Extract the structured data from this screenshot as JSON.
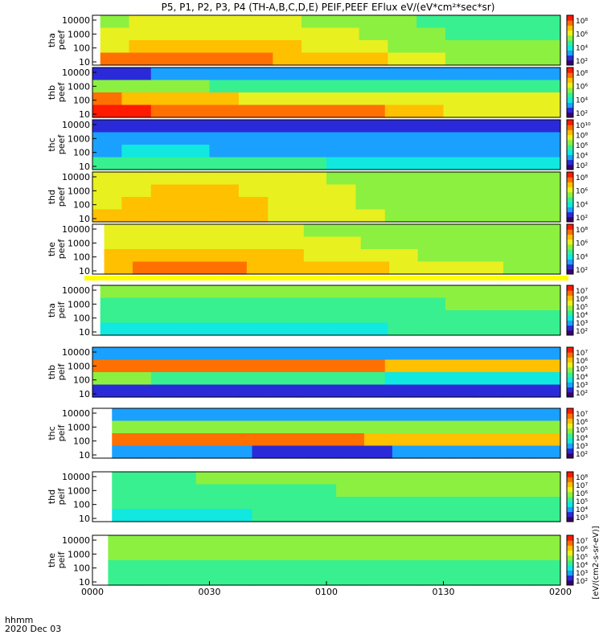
{
  "title": "P5, P1, P2, P3, P4 (TH-A,B,C,D,E) PEIF,PEEF EFlux eV/(eV*cm²*sec*sr)",
  "footer": {
    "time_label": "hhmm",
    "date_label": "2020 Dec 03"
  },
  "x_ticks": [
    "0000",
    "0030",
    "0100",
    "0130",
    "0200"
  ],
  "colorbar_unit_label": "[eV/(cm2-s-sr-eV)]",
  "palette": {
    "spectrum": [
      "#3a006a",
      "#2a2ad8",
      "#1aa0ff",
      "#10e8e0",
      "#38f090",
      "#8cf040",
      "#e8f020",
      "#ffc000",
      "#ff7000",
      "#ff1a00"
    ],
    "separator_yellow": "#ffff00"
  },
  "chart_data": {
    "type": "heatmap",
    "time_range_hhmm": [
      "0000",
      "0200"
    ],
    "y_scale": "log",
    "y_ticks": [
      "10",
      "100",
      "1000",
      "10000"
    ],
    "panels": [
      {
        "probe": "tha",
        "product": "peef",
        "label_lines": [
          "tha",
          "peef"
        ],
        "colorbar_ticks": [
          "10²",
          "10⁴",
          "10⁶",
          "10⁸"
        ],
        "data_start_min": 2,
        "levels": [
          [
            0.6,
            0.62,
            0.64,
            0.66,
            0.66,
            0.64,
            0.62,
            0.6,
            0.58,
            0.56,
            0.5,
            0.46,
            0.44,
            0.44,
            0.42,
            0.42
          ],
          [
            0.65,
            0.67,
            0.69,
            0.71,
            0.7,
            0.68,
            0.66,
            0.64,
            0.62,
            0.6,
            0.55,
            0.5,
            0.48,
            0.47,
            0.46,
            0.46
          ],
          [
            0.72,
            0.75,
            0.77,
            0.78,
            0.77,
            0.75,
            0.73,
            0.71,
            0.69,
            0.66,
            0.6,
            0.55,
            0.53,
            0.52,
            0.51,
            0.51
          ],
          [
            0.84,
            0.86,
            0.87,
            0.87,
            0.86,
            0.85,
            0.83,
            0.8,
            0.78,
            0.75,
            0.7,
            0.65,
            0.6,
            0.58,
            0.57,
            0.57
          ]
        ]
      },
      {
        "probe": "thb",
        "product": "peef",
        "label_lines": [
          "thb",
          "peef"
        ],
        "colorbar_ticks": [
          "10²",
          "10⁴",
          "10⁶",
          "10⁸"
        ],
        "data_start_min": 0,
        "levels": [
          [
            0.15,
            0.15,
            0.18,
            0.2,
            0.2,
            0.2,
            0.2,
            0.2,
            0.2,
            0.2,
            0.2,
            0.18,
            0.18,
            0.18,
            0.18,
            0.18
          ],
          [
            0.55,
            0.52,
            0.5,
            0.5,
            0.48,
            0.46,
            0.44,
            0.44,
            0.42,
            0.42,
            0.44,
            0.44,
            0.46,
            0.45,
            0.45,
            0.45
          ],
          [
            0.88,
            0.8,
            0.78,
            0.76,
            0.74,
            0.72,
            0.7,
            0.7,
            0.68,
            0.66,
            0.65,
            0.65,
            0.64,
            0.64,
            0.62,
            0.62
          ],
          [
            0.98,
            0.96,
            0.94,
            0.92,
            0.9,
            0.9,
            0.88,
            0.86,
            0.86,
            0.85,
            0.8,
            0.75,
            0.72,
            0.72,
            0.7,
            0.7
          ]
        ]
      },
      {
        "probe": "thc",
        "product": "peef",
        "label_lines": [
          "thc",
          "peef"
        ],
        "colorbar_ticks": [
          "10²",
          "10⁴",
          "10⁶",
          "10⁸",
          "10¹⁰"
        ],
        "data_start_min": 0,
        "levels": [
          [
            0.1,
            0.12,
            0.12,
            0.12,
            0.1,
            0.1,
            0.1,
            0.1,
            0.1,
            0.1,
            0.08,
            0.08,
            0.08,
            0.08,
            0.08,
            0.1
          ],
          [
            0.2,
            0.22,
            0.22,
            0.22,
            0.2,
            0.2,
            0.2,
            0.2,
            0.2,
            0.2,
            0.18,
            0.18,
            0.18,
            0.2,
            0.2,
            0.2
          ],
          [
            0.26,
            0.28,
            0.28,
            0.28,
            0.26,
            0.26,
            0.26,
            0.26,
            0.26,
            0.26,
            0.24,
            0.24,
            0.24,
            0.24,
            0.24,
            0.26
          ],
          [
            0.4,
            0.42,
            0.44,
            0.44,
            0.42,
            0.42,
            0.42,
            0.4,
            0.38,
            0.36,
            0.34,
            0.34,
            0.32,
            0.32,
            0.32,
            0.32
          ]
        ]
      },
      {
        "probe": "thd",
        "product": "peef",
        "label_lines": [
          "thd",
          "peef"
        ],
        "colorbar_ticks": [
          "10²",
          "10⁴",
          "10⁶",
          "10⁸"
        ],
        "data_start_min": 0,
        "levels": [
          [
            0.66,
            0.68,
            0.7,
            0.7,
            0.7,
            0.68,
            0.66,
            0.64,
            0.6,
            0.56,
            0.52,
            0.5,
            0.5,
            0.5,
            0.5,
            0.5
          ],
          [
            0.7,
            0.72,
            0.74,
            0.74,
            0.74,
            0.72,
            0.7,
            0.68,
            0.62,
            0.56,
            0.52,
            0.5,
            0.5,
            0.5,
            0.5,
            0.5
          ],
          [
            0.72,
            0.74,
            0.75,
            0.75,
            0.75,
            0.73,
            0.71,
            0.69,
            0.63,
            0.57,
            0.53,
            0.51,
            0.51,
            0.51,
            0.51,
            0.51
          ],
          [
            0.74,
            0.75,
            0.76,
            0.76,
            0.76,
            0.74,
            0.72,
            0.7,
            0.66,
            0.62,
            0.58,
            0.56,
            0.55,
            0.55,
            0.55,
            0.55
          ]
        ]
      },
      {
        "probe": "the",
        "product": "peef",
        "label_lines": [
          "the",
          "peef"
        ],
        "colorbar_ticks": [
          "10²",
          "10⁴",
          "10⁶",
          "10⁸"
        ],
        "data_start_min": 3,
        "levels": [
          [
            0.62,
            0.64,
            0.66,
            0.66,
            0.66,
            0.64,
            0.62,
            0.6,
            0.58,
            0.56,
            0.54,
            0.52,
            0.5,
            0.5,
            0.5,
            0.5
          ],
          [
            0.68,
            0.7,
            0.72,
            0.72,
            0.71,
            0.7,
            0.68,
            0.66,
            0.63,
            0.6,
            0.58,
            0.56,
            0.54,
            0.54,
            0.54,
            0.54
          ],
          [
            0.74,
            0.76,
            0.77,
            0.77,
            0.76,
            0.75,
            0.73,
            0.71,
            0.68,
            0.66,
            0.63,
            0.6,
            0.58,
            0.58,
            0.57,
            0.57
          ],
          [
            0.82,
            0.84,
            0.85,
            0.85,
            0.84,
            0.83,
            0.81,
            0.79,
            0.76,
            0.73,
            0.7,
            0.66,
            0.63,
            0.62,
            0.6,
            0.6
          ]
        ]
      },
      {
        "probe": "tha",
        "product": "peif",
        "label_lines": [
          "tha",
          "peif"
        ],
        "colorbar_ticks": [
          "10²",
          "10³",
          "10⁴",
          "10⁵",
          "10⁶",
          "10⁷"
        ],
        "data_start_min": 2,
        "levels": [
          [
            0.5,
            0.5,
            0.5,
            0.5,
            0.5,
            0.5,
            0.5,
            0.5,
            0.5,
            0.5,
            0.5,
            0.5,
            0.52,
            0.52,
            0.52,
            0.52
          ],
          [
            0.46,
            0.46,
            0.46,
            0.46,
            0.46,
            0.46,
            0.46,
            0.46,
            0.46,
            0.46,
            0.48,
            0.48,
            0.5,
            0.5,
            0.5,
            0.5
          ],
          [
            0.42,
            0.42,
            0.42,
            0.42,
            0.42,
            0.42,
            0.42,
            0.42,
            0.42,
            0.42,
            0.44,
            0.44,
            0.46,
            0.46,
            0.46,
            0.46
          ],
          [
            0.38,
            0.38,
            0.36,
            0.38,
            0.38,
            0.38,
            0.38,
            0.38,
            0.38,
            0.38,
            0.4,
            0.4,
            0.42,
            0.42,
            0.42,
            0.42
          ]
        ]
      },
      {
        "probe": "thb",
        "product": "peif",
        "label_lines": [
          "thb",
          "peif"
        ],
        "colorbar_ticks": [
          "10²",
          "10³",
          "10⁴",
          "10⁵",
          "10⁶",
          "10⁷"
        ],
        "data_start_min": 0,
        "levels": [
          [
            0.2,
            0.22,
            0.24,
            0.24,
            0.22,
            0.2,
            0.22,
            0.24,
            0.24,
            0.22,
            0.2,
            0.18,
            0.2,
            0.22,
            0.2,
            0.2
          ],
          [
            0.9,
            0.9,
            0.92,
            0.92,
            0.9,
            0.9,
            0.9,
            0.9,
            0.86,
            0.84,
            0.8,
            0.78,
            0.76,
            0.78,
            0.8,
            0.8
          ],
          [
            0.5,
            0.5,
            0.48,
            0.48,
            0.46,
            0.46,
            0.46,
            0.44,
            0.42,
            0.4,
            0.38,
            0.38,
            0.36,
            0.36,
            0.36,
            0.36
          ],
          [
            0.08,
            0.1,
            0.12,
            0.1,
            0.1,
            0.1,
            0.12,
            0.12,
            0.12,
            0.14,
            0.14,
            0.16,
            0.16,
            0.16,
            0.16,
            0.16
          ]
        ]
      },
      {
        "probe": "thc",
        "product": "peif",
        "label_lines": [
          "thc",
          "peif"
        ],
        "colorbar_ticks": [
          "10²",
          "10³",
          "10⁴",
          "10⁵",
          "10⁶",
          "10⁷"
        ],
        "data_start_min": 5,
        "levels": [
          [
            0.2,
            0.2,
            0.18,
            0.18,
            0.18,
            0.2,
            0.2,
            0.2,
            0.2,
            0.22,
            0.22,
            0.22,
            0.24,
            0.24,
            0.24,
            0.24
          ],
          [
            0.58,
            0.6,
            0.6,
            0.6,
            0.6,
            0.6,
            0.6,
            0.6,
            0.58,
            0.58,
            0.58,
            0.56,
            0.56,
            0.56,
            0.56,
            0.56
          ],
          [
            0.86,
            0.86,
            0.86,
            0.86,
            0.86,
            0.86,
            0.84,
            0.84,
            0.84,
            0.82,
            0.82,
            0.82,
            0.8,
            0.8,
            0.78,
            0.78
          ],
          [
            0.2,
            0.2,
            0.18,
            0.18,
            0.18,
            0.16,
            0.16,
            0.16,
            0.16,
            0.16,
            0.18,
            0.18,
            0.18,
            0.2,
            0.2,
            0.2
          ]
        ]
      },
      {
        "probe": "thd",
        "product": "peif",
        "label_lines": [
          "thd",
          "peif"
        ],
        "colorbar_ticks": [
          "10³",
          "10⁴",
          "10⁵",
          "10⁶",
          "10⁷",
          "10⁸"
        ],
        "data_start_min": 5,
        "levels": [
          [
            0.48,
            0.48,
            0.48,
            0.5,
            0.5,
            0.5,
            0.5,
            0.5,
            0.52,
            0.52,
            0.52,
            0.54,
            0.54,
            0.56,
            0.56,
            0.56
          ],
          [
            0.46,
            0.46,
            0.46,
            0.46,
            0.46,
            0.48,
            0.48,
            0.48,
            0.5,
            0.5,
            0.5,
            0.52,
            0.52,
            0.52,
            0.52,
            0.52
          ],
          [
            0.42,
            0.42,
            0.42,
            0.42,
            0.42,
            0.44,
            0.44,
            0.44,
            0.46,
            0.46,
            0.46,
            0.48,
            0.48,
            0.48,
            0.48,
            0.48
          ],
          [
            0.38,
            0.38,
            0.38,
            0.38,
            0.38,
            0.4,
            0.4,
            0.4,
            0.42,
            0.42,
            0.42,
            0.44,
            0.44,
            0.44,
            0.44,
            0.44
          ]
        ]
      },
      {
        "probe": "the",
        "product": "peif",
        "label_lines": [
          "the",
          "peif"
        ],
        "colorbar_ticks": [
          "10²",
          "10³",
          "10⁴",
          "10⁵",
          "10⁶",
          "10⁷"
        ],
        "data_start_min": 4,
        "levels": [
          [
            0.54,
            0.54,
            0.56,
            0.56,
            0.56,
            0.56,
            0.56,
            0.56,
            0.56,
            0.56,
            0.56,
            0.56,
            0.56,
            0.56,
            0.56,
            0.56
          ],
          [
            0.52,
            0.52,
            0.52,
            0.52,
            0.52,
            0.52,
            0.52,
            0.52,
            0.52,
            0.52,
            0.52,
            0.52,
            0.52,
            0.52,
            0.52,
            0.52
          ],
          [
            0.48,
            0.48,
            0.48,
            0.48,
            0.48,
            0.48,
            0.48,
            0.48,
            0.48,
            0.48,
            0.48,
            0.48,
            0.48,
            0.48,
            0.48,
            0.48
          ],
          [
            0.44,
            0.44,
            0.44,
            0.44,
            0.44,
            0.44,
            0.44,
            0.44,
            0.44,
            0.44,
            0.44,
            0.44,
            0.44,
            0.44,
            0.44,
            0.44
          ]
        ]
      }
    ]
  }
}
